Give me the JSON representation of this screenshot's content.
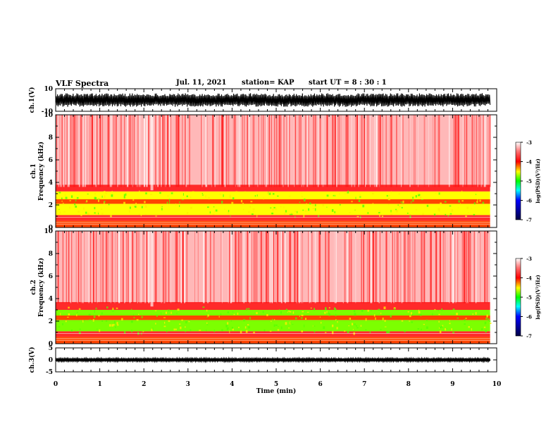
{
  "header": {
    "title": "VLF Spectra",
    "date": "Jul. 11, 2021",
    "station": "station= KAP",
    "start": "start  UT =  8 : 30 : 1"
  },
  "chart_data": [
    {
      "type": "line",
      "name": "ch1-waveform",
      "ylabel": "ch.1(V)",
      "ylim": [
        -10,
        10
      ],
      "yticks": [
        10,
        -10
      ],
      "xlim": [
        0,
        10
      ],
      "x_extent": [
        0,
        9.85
      ],
      "amplitude_v": 6
    },
    {
      "type": "heatmap",
      "name": "ch1-spectrogram",
      "ylabel": "ch.1 Frequency (kHz)",
      "ylim": [
        0,
        10
      ],
      "yticks": [
        0,
        2,
        4,
        6,
        8,
        10
      ],
      "xlim": [
        0,
        10
      ],
      "x_extent": [
        0,
        9.85
      ],
      "bands_khz": [
        {
          "from": 0.0,
          "to": 0.6,
          "level": -4.1
        },
        {
          "from": 0.6,
          "to": 1.1,
          "level": -3.9
        },
        {
          "from": 1.1,
          "to": 2.1,
          "level": -4.4
        },
        {
          "from": 2.1,
          "to": 2.5,
          "level": -4.0
        },
        {
          "from": 2.5,
          "to": 3.2,
          "level": -4.35
        },
        {
          "from": 3.2,
          "to": 3.8,
          "level": -3.7
        },
        {
          "from": 3.8,
          "to": 10.0,
          "level": -3.35
        }
      ],
      "colorbar": {
        "label": "log(PSD)(V²/Hz)",
        "range": [
          -7,
          -3
        ],
        "ticks": [
          -3,
          -4,
          -5,
          -6,
          -7
        ]
      }
    },
    {
      "type": "heatmap",
      "name": "ch2-spectrogram",
      "ylabel": "ch.2 Frequency (kHz)",
      "ylim": [
        0,
        10
      ],
      "yticks": [
        0,
        2,
        4,
        6,
        8,
        10
      ],
      "xlim": [
        0,
        10
      ],
      "x_extent": [
        0,
        9.85
      ],
      "bands_khz": [
        {
          "from": 0.0,
          "to": 0.6,
          "level": -4.1
        },
        {
          "from": 0.6,
          "to": 1.1,
          "level": -3.9
        },
        {
          "from": 1.1,
          "to": 2.1,
          "level": -4.6
        },
        {
          "from": 2.1,
          "to": 2.5,
          "level": -4.0
        },
        {
          "from": 2.5,
          "to": 3.0,
          "level": -4.55
        },
        {
          "from": 3.0,
          "to": 3.7,
          "level": -3.8
        },
        {
          "from": 3.7,
          "to": 10.0,
          "level": -3.35
        }
      ],
      "colorbar": {
        "label": "log(PSD)(V²/Hz)",
        "range": [
          -7,
          -3
        ],
        "ticks": [
          -3,
          -4,
          -5,
          -6,
          -7
        ]
      }
    },
    {
      "type": "line",
      "name": "ch3-waveform",
      "ylabel": "ch.3(V)",
      "ylim": [
        -5,
        5
      ],
      "yticks": [
        5,
        0,
        -5
      ],
      "xlim": [
        0,
        10
      ],
      "x_extent": [
        0,
        9.85
      ],
      "amplitude_v": 0.5
    }
  ],
  "xaxis": {
    "label": "Time  (min)",
    "ticks": [
      0,
      1,
      2,
      3,
      4,
      5,
      6,
      7,
      8,
      9,
      10
    ]
  }
}
